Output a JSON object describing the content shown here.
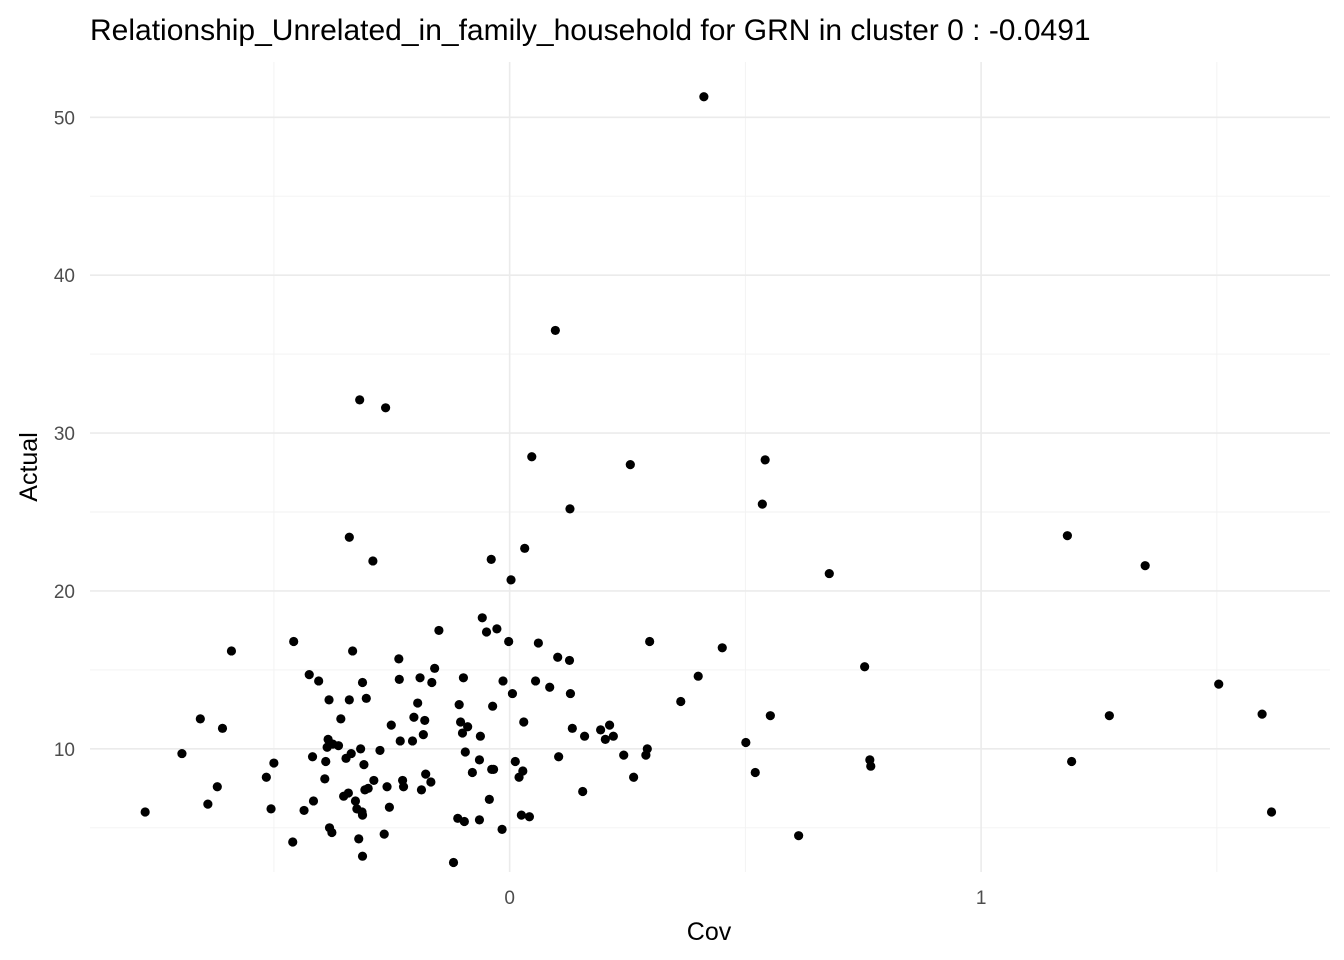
{
  "chart_data": {
    "type": "scatter",
    "title": "Relationship_Unrelated_in_family_household for GRN in cluster 0 : -0.0491",
    "xlabel": "Cov",
    "ylabel": "Actual",
    "xlim": [
      -0.89,
      1.74
    ],
    "ylim": [
      2.2,
      53.5
    ],
    "x_ticks": [
      0,
      1
    ],
    "x_tick_labels": [
      "0",
      "1"
    ],
    "x_minor_ticks": [
      -0.5,
      0.5,
      1.5
    ],
    "y_ticks": [
      10,
      20,
      30,
      40,
      50
    ],
    "y_tick_labels": [
      "10",
      "20",
      "30",
      "40",
      "50"
    ],
    "y_minor_ticks": [
      5,
      15,
      25,
      35,
      45
    ],
    "grid": true,
    "legend": "none",
    "point_color": "#000000",
    "points": [
      [
        -0.773,
        6.0
      ],
      [
        -0.695,
        9.7
      ],
      [
        -0.656,
        11.9
      ],
      [
        -0.64,
        6.5
      ],
      [
        -0.62,
        7.6
      ],
      [
        -0.609,
        11.3
      ],
      [
        -0.59,
        16.2
      ],
      [
        -0.516,
        8.2
      ],
      [
        -0.506,
        6.2
      ],
      [
        -0.5,
        9.1
      ],
      [
        -0.46,
        4.1
      ],
      [
        -0.458,
        16.8
      ],
      [
        -0.436,
        6.1
      ],
      [
        -0.425,
        14.7
      ],
      [
        -0.418,
        9.5
      ],
      [
        -0.416,
        6.7
      ],
      [
        -0.405,
        14.3
      ],
      [
        -0.392,
        8.1
      ],
      [
        -0.39,
        9.2
      ],
      [
        -0.387,
        10.1
      ],
      [
        -0.385,
        10.6
      ],
      [
        -0.383,
        13.1
      ],
      [
        -0.382,
        5.0
      ],
      [
        -0.377,
        4.7
      ],
      [
        -0.375,
        10.3
      ],
      [
        -0.363,
        10.2
      ],
      [
        -0.358,
        11.9
      ],
      [
        -0.352,
        7.0
      ],
      [
        -0.347,
        9.4
      ],
      [
        -0.342,
        7.2
      ],
      [
        -0.34,
        13.1
      ],
      [
        -0.34,
        23.4
      ],
      [
        -0.336,
        9.7
      ],
      [
        -0.333,
        16.2
      ],
      [
        -0.327,
        6.7
      ],
      [
        -0.324,
        6.2
      ],
      [
        -0.32,
        4.3
      ],
      [
        -0.318,
        32.1
      ],
      [
        -0.316,
        10.0
      ],
      [
        -0.313,
        6.0
      ],
      [
        -0.312,
        5.8
      ],
      [
        -0.312,
        14.2
      ],
      [
        -0.312,
        3.2
      ],
      [
        -0.309,
        9.0
      ],
      [
        -0.307,
        7.4
      ],
      [
        -0.304,
        13.2
      ],
      [
        -0.3,
        7.5
      ],
      [
        -0.29,
        21.9
      ],
      [
        -0.288,
        8.0
      ],
      [
        -0.275,
        9.9
      ],
      [
        -0.266,
        4.6
      ],
      [
        -0.263,
        31.6
      ],
      [
        -0.26,
        7.6
      ],
      [
        -0.255,
        6.3
      ],
      [
        -0.251,
        11.5
      ],
      [
        -0.235,
        15.7
      ],
      [
        -0.234,
        14.4
      ],
      [
        -0.232,
        10.5
      ],
      [
        -0.227,
        8.0
      ],
      [
        -0.225,
        7.6
      ],
      [
        -0.206,
        10.5
      ],
      [
        -0.203,
        12.0
      ],
      [
        -0.195,
        12.9
      ],
      [
        -0.19,
        14.5
      ],
      [
        -0.187,
        7.4
      ],
      [
        -0.183,
        10.9
      ],
      [
        -0.18,
        11.8
      ],
      [
        -0.178,
        8.4
      ],
      [
        -0.167,
        7.9
      ],
      [
        -0.165,
        14.2
      ],
      [
        -0.159,
        15.1
      ],
      [
        -0.15,
        17.5
      ],
      [
        -0.119,
        2.8
      ],
      [
        -0.11,
        5.6
      ],
      [
        -0.107,
        12.8
      ],
      [
        -0.104,
        11.7
      ],
      [
        -0.1,
        11.0
      ],
      [
        -0.098,
        14.5
      ],
      [
        -0.096,
        5.4
      ],
      [
        -0.094,
        9.8
      ],
      [
        -0.089,
        11.4
      ],
      [
        -0.079,
        8.5
      ],
      [
        -0.064,
        5.5
      ],
      [
        -0.064,
        9.3
      ],
      [
        -0.062,
        10.8
      ],
      [
        -0.058,
        18.3
      ],
      [
        -0.049,
        17.4
      ],
      [
        -0.043,
        6.8
      ],
      [
        -0.039,
        22.0
      ],
      [
        -0.038,
        8.7
      ],
      [
        -0.036,
        12.7
      ],
      [
        -0.034,
        8.7
      ],
      [
        -0.027,
        17.6
      ],
      [
        -0.016,
        4.9
      ],
      [
        -0.014,
        14.3
      ],
      [
        -0.002,
        16.8
      ],
      [
        0.003,
        20.7
      ],
      [
        0.006,
        13.5
      ],
      [
        0.012,
        9.2
      ],
      [
        0.02,
        8.2
      ],
      [
        0.025,
        5.8
      ],
      [
        0.028,
        8.6
      ],
      [
        0.03,
        11.7
      ],
      [
        0.032,
        22.7
      ],
      [
        0.042,
        5.7
      ],
      [
        0.047,
        28.5
      ],
      [
        0.055,
        14.3
      ],
      [
        0.061,
        16.7
      ],
      [
        0.085,
        13.9
      ],
      [
        0.097,
        36.5
      ],
      [
        0.102,
        15.8
      ],
      [
        0.104,
        9.5
      ],
      [
        0.127,
        15.6
      ],
      [
        0.128,
        25.2
      ],
      [
        0.129,
        13.5
      ],
      [
        0.133,
        11.3
      ],
      [
        0.155,
        7.3
      ],
      [
        0.159,
        10.8
      ],
      [
        0.193,
        11.2
      ],
      [
        0.203,
        10.6
      ],
      [
        0.212,
        11.5
      ],
      [
        0.22,
        10.8
      ],
      [
        0.242,
        9.6
      ],
      [
        0.256,
        28.0
      ],
      [
        0.263,
        8.2
      ],
      [
        0.289,
        9.6
      ],
      [
        0.292,
        10.0
      ],
      [
        0.297,
        16.8
      ],
      [
        0.363,
        13.0
      ],
      [
        0.4,
        14.6
      ],
      [
        0.412,
        51.3
      ],
      [
        0.451,
        16.4
      ],
      [
        0.501,
        10.4
      ],
      [
        0.521,
        8.5
      ],
      [
        0.536,
        25.5
      ],
      [
        0.542,
        28.3
      ],
      [
        0.553,
        12.1
      ],
      [
        0.613,
        4.5
      ],
      [
        0.678,
        21.1
      ],
      [
        0.753,
        15.2
      ],
      [
        0.764,
        9.3
      ],
      [
        0.766,
        8.9
      ],
      [
        1.183,
        23.5
      ],
      [
        1.192,
        9.2
      ],
      [
        1.272,
        12.1
      ],
      [
        1.348,
        21.6
      ],
      [
        1.504,
        14.1
      ],
      [
        1.596,
        12.2
      ],
      [
        1.616,
        6.0
      ]
    ]
  }
}
